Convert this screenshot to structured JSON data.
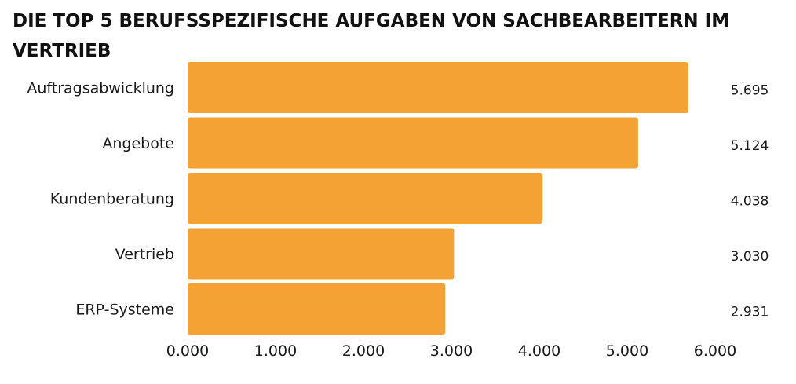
{
  "chart_data": {
    "type": "bar",
    "orientation": "horizontal",
    "title": "DIE TOP 5 BERUFSSPEZIFISCHE AUFGABEN VON SACHBEARBEITERN IM VERTRIEB",
    "categories": [
      "Auftragsabwicklung",
      "Angebote",
      "Kundenberatung",
      "Vertrieb",
      "ERP-Systeme"
    ],
    "values": [
      5695,
      5124,
      4038,
      3030,
      2931
    ],
    "value_labels": [
      "5.695",
      "5.124",
      "4.038",
      "3.030",
      "2.931"
    ],
    "xlim": [
      0,
      6000
    ],
    "x_ticks": [
      0,
      1000,
      2000,
      3000,
      4000,
      5000,
      6000
    ],
    "x_tick_labels": [
      "0.000",
      "1.000",
      "2.000",
      "3.000",
      "4.000",
      "5.000",
      "6.000"
    ],
    "bar_color": "#F4A233",
    "grid": false,
    "legend": "none"
  }
}
